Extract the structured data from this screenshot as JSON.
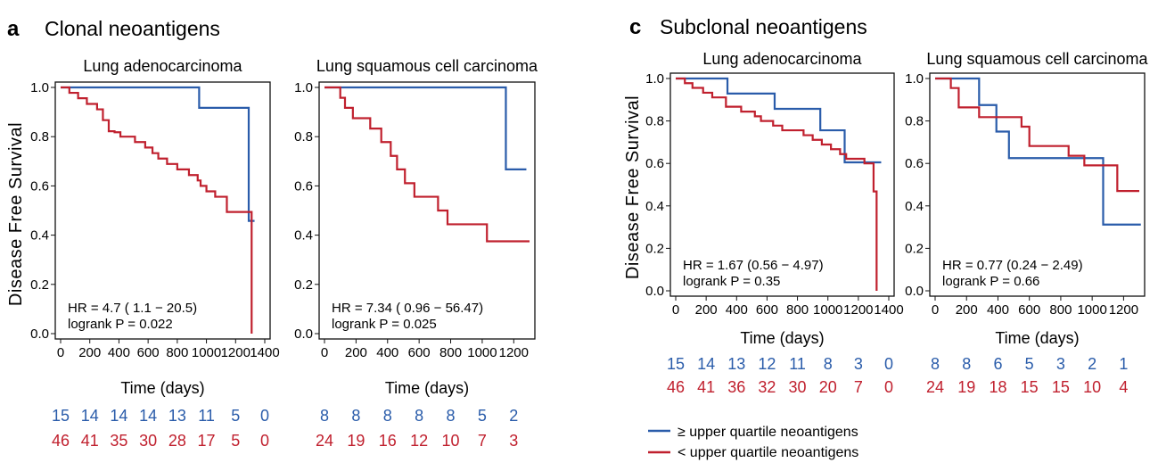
{
  "colors": {
    "upper": "#2a5caa",
    "lower": "#c0202e"
  },
  "panel_a": {
    "letter": "a",
    "title": "Clonal neoantigens"
  },
  "panel_c": {
    "letter": "c",
    "title": "Subclonal neoantigens"
  },
  "y_axis_label": "Disease Free Survival",
  "legend": {
    "upper": "≥  upper quartile neoantigens",
    "lower": "< upper quartile neoantigens"
  },
  "chart_data": [
    {
      "type": "line",
      "id": "a1",
      "title": "Lung adenocarcinoma",
      "xlabel": "Time (days)",
      "ylabel": "Disease Free Survival",
      "xlim": [
        0,
        1400
      ],
      "ylim": [
        0,
        1
      ],
      "xticks": [
        0,
        200,
        400,
        600,
        800,
        1000,
        1200,
        1400
      ],
      "yticks": [
        "0.0",
        "0.2",
        "0.4",
        "0.6",
        "0.8",
        "1.0"
      ],
      "hr_text": "HR =  4.7 ( 1.1 − 20.5)",
      "p_text": "logrank P = 0.022",
      "series": [
        {
          "name": "≥ upper quartile neoantigens",
          "color": "upper",
          "steps": [
            [
              0,
              1.0
            ],
            [
              950,
              0.917
            ],
            [
              1290,
              0.458
            ],
            [
              1330,
              0.458
            ]
          ]
        },
        {
          "name": "< upper quartile neoantigens",
          "color": "lower",
          "steps": [
            [
              0,
              1.0
            ],
            [
              60,
              0.978
            ],
            [
              120,
              0.956
            ],
            [
              180,
              0.933
            ],
            [
              250,
              0.911
            ],
            [
              290,
              0.867
            ],
            [
              330,
              0.822
            ],
            [
              370,
              0.818
            ],
            [
              410,
              0.8
            ],
            [
              510,
              0.778
            ],
            [
              580,
              0.756
            ],
            [
              630,
              0.733
            ],
            [
              670,
              0.711
            ],
            [
              730,
              0.689
            ],
            [
              800,
              0.667
            ],
            [
              880,
              0.644
            ],
            [
              940,
              0.622
            ],
            [
              960,
              0.6
            ],
            [
              1000,
              0.578
            ],
            [
              1060,
              0.556
            ],
            [
              1140,
              0.494
            ],
            [
              1300,
              0.494
            ],
            [
              1310,
              0.0
            ]
          ]
        }
      ],
      "risk_table": {
        "upper": [
          "15",
          "14",
          "14",
          "14",
          "13",
          "11",
          "5",
          "0"
        ],
        "lower": [
          "46",
          "41",
          "35",
          "30",
          "28",
          "17",
          "5",
          "0"
        ]
      }
    },
    {
      "type": "line",
      "id": "a2",
      "title": "Lung squamous cell carcinoma",
      "xlabel": "Time (days)",
      "ylabel": "Disease Free Survival",
      "xlim": [
        0,
        1300
      ],
      "ylim": [
        0,
        1
      ],
      "xticks": [
        0,
        200,
        400,
        600,
        800,
        1000,
        1200
      ],
      "yticks": [
        "0.0",
        "0.2",
        "0.4",
        "0.6",
        "0.8",
        "1.0"
      ],
      "hr_text": "HR =  7.34 ( 0.96 − 56.47)",
      "p_text": "logrank P = 0.025",
      "series": [
        {
          "name": "≥ upper quartile neoantigens",
          "color": "upper",
          "steps": [
            [
              0,
              1.0
            ],
            [
              1150,
              0.667
            ],
            [
              1280,
              0.667
            ]
          ]
        },
        {
          "name": "< upper quartile neoantigens",
          "color": "lower",
          "steps": [
            [
              0,
              1.0
            ],
            [
              100,
              0.958
            ],
            [
              130,
              0.917
            ],
            [
              180,
              0.875
            ],
            [
              290,
              0.833
            ],
            [
              360,
              0.778
            ],
            [
              420,
              0.722
            ],
            [
              460,
              0.667
            ],
            [
              510,
              0.611
            ],
            [
              570,
              0.556
            ],
            [
              720,
              0.5
            ],
            [
              780,
              0.444
            ],
            [
              920,
              0.444
            ],
            [
              1030,
              0.375
            ],
            [
              1300,
              0.375
            ]
          ]
        }
      ],
      "risk_table": {
        "upper": [
          "8",
          "8",
          "8",
          "8",
          "8",
          "5",
          "2"
        ],
        "lower": [
          "24",
          "19",
          "16",
          "12",
          "10",
          "7",
          "3"
        ]
      }
    },
    {
      "type": "line",
      "id": "c1",
      "title": "Lung adenocarcinoma",
      "xlabel": "Time (days)",
      "ylabel": "Disease Free Survival",
      "xlim": [
        0,
        1400
      ],
      "ylim": [
        0,
        1
      ],
      "xticks": [
        0,
        200,
        400,
        600,
        800,
        1000,
        1200,
        1400
      ],
      "yticks": [
        "0.0",
        "0.2",
        "0.4",
        "0.6",
        "0.8",
        "1.0"
      ],
      "hr_text": "HR = 1.67 (0.56 − 4.97)",
      "p_text": "logrank P = 0.35",
      "series": [
        {
          "name": "≥ upper quartile neoantigens",
          "color": "upper",
          "steps": [
            [
              0,
              1.0
            ],
            [
              340,
              0.929
            ],
            [
              650,
              0.857
            ],
            [
              950,
              0.756
            ],
            [
              1110,
              0.605
            ],
            [
              1350,
              0.605
            ]
          ]
        },
        {
          "name": "< upper quartile neoantigens",
          "color": "lower",
          "steps": [
            [
              0,
              1.0
            ],
            [
              60,
              0.978
            ],
            [
              110,
              0.956
            ],
            [
              180,
              0.933
            ],
            [
              240,
              0.911
            ],
            [
              330,
              0.867
            ],
            [
              430,
              0.844
            ],
            [
              520,
              0.822
            ],
            [
              560,
              0.8
            ],
            [
              640,
              0.778
            ],
            [
              700,
              0.756
            ],
            [
              840,
              0.733
            ],
            [
              900,
              0.711
            ],
            [
              960,
              0.689
            ],
            [
              1020,
              0.667
            ],
            [
              1080,
              0.644
            ],
            [
              1120,
              0.622
            ],
            [
              1240,
              0.6
            ],
            [
              1300,
              0.468
            ],
            [
              1320,
              0.0
            ]
          ]
        }
      ],
      "risk_table": {
        "upper": [
          "15",
          "14",
          "13",
          "12",
          "11",
          "8",
          "3",
          "0"
        ],
        "lower": [
          "46",
          "41",
          "36",
          "32",
          "30",
          "20",
          "7",
          "0"
        ]
      }
    },
    {
      "type": "line",
      "id": "c2",
      "title": "Lung squamous cell carcinoma",
      "xlabel": "Time (days)",
      "ylabel": "Disease Free Survival",
      "xlim": [
        0,
        1300
      ],
      "ylim": [
        0,
        1
      ],
      "xticks": [
        0,
        200,
        400,
        600,
        800,
        1000,
        1200
      ],
      "yticks": [
        "0.0",
        "0.2",
        "0.4",
        "0.6",
        "0.8",
        "1.0"
      ],
      "hr_text": "HR = 0.77 (0.24 − 2.49)",
      "p_text": "logrank P = 0.66",
      "series": [
        {
          "name": "≥ upper quartile neoantigens",
          "color": "upper",
          "steps": [
            [
              0,
              1.0
            ],
            [
              280,
              0.875
            ],
            [
              390,
              0.75
            ],
            [
              470,
              0.625
            ],
            [
              1070,
              0.312
            ],
            [
              1310,
              0.312
            ]
          ]
        },
        {
          "name": "< upper quartile neoantigens",
          "color": "lower",
          "steps": [
            [
              0,
              1.0
            ],
            [
              100,
              0.955
            ],
            [
              150,
              0.864
            ],
            [
              280,
              0.818
            ],
            [
              550,
              0.773
            ],
            [
              600,
              0.682
            ],
            [
              850,
              0.636
            ],
            [
              950,
              0.591
            ],
            [
              1160,
              0.47
            ],
            [
              1300,
              0.47
            ]
          ]
        }
      ],
      "risk_table": {
        "upper": [
          "8",
          "8",
          "6",
          "5",
          "3",
          "2",
          "1"
        ],
        "lower": [
          "24",
          "19",
          "18",
          "15",
          "15",
          "10",
          "4"
        ]
      }
    }
  ]
}
